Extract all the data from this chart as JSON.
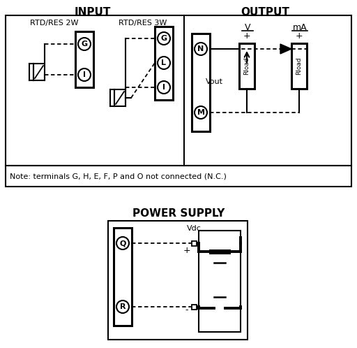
{
  "title_input": "INPUT",
  "title_output": "OUTPUT",
  "title_power": "POWER SUPPLY",
  "label_2w": "RTD/RES 2W",
  "label_3w": "RTD/RES 3W",
  "label_V": "V",
  "label_mA": "mA",
  "label_Vout": "Vout",
  "label_Vdc": "Vdc",
  "label_note": "Note: terminals G, H, E, F, P and O not connected (N.C.)",
  "bg_color": "#ffffff",
  "fg_color": "#000000",
  "fig_width": 5.12,
  "fig_height": 4.98,
  "dpi": 100
}
